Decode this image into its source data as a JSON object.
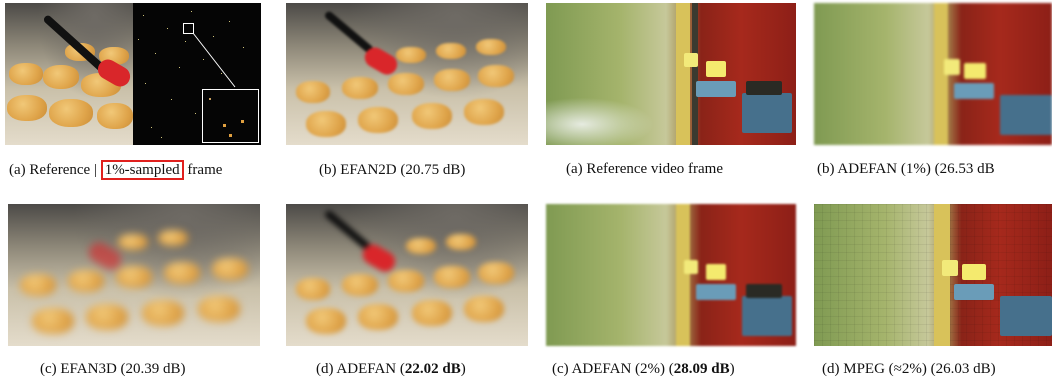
{
  "captions": {
    "ref_prefix": "(a) Reference |",
    "ref_highlight": "1%-sampled",
    "ref_suffix": "frame",
    "efan2d": "(b) EFAN2D (20.75 dB)",
    "efan3d": "(c) EFAN3D (20.39 dB)",
    "adefan_prefix": "(d) ADEFAN (",
    "adefan_value": "22.02 dB",
    "adefan_suffix": ")",
    "ref_video": "(a) Reference video frame",
    "adefan1": "(b) ADEFAN (1%) (26.53 dB",
    "adefan2_prefix": "(c) ADEFAN (2%) (",
    "adefan2_value": "28.09 dB",
    "adefan2_suffix": ")",
    "mpeg": "(d) MPEG (≈2%) (26.03 dB)"
  },
  "colors": {
    "highlight_box": "#e0201e",
    "inset_border": "#ffffff"
  }
}
